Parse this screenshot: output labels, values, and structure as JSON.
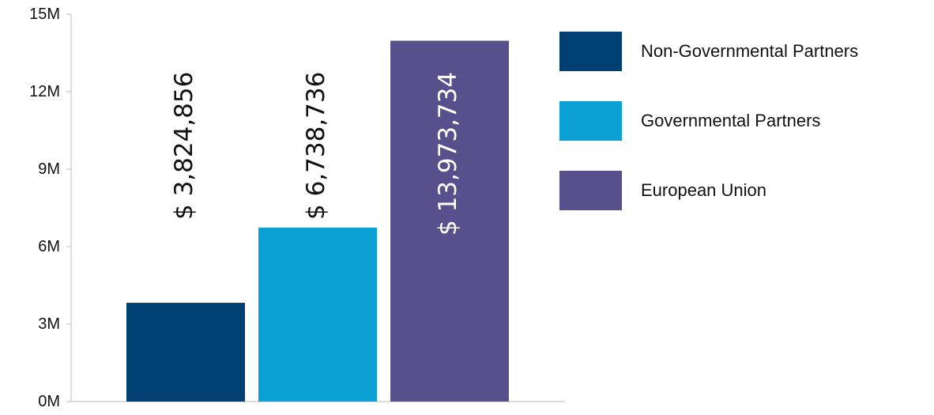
{
  "chart_data": {
    "type": "bar",
    "title": "",
    "xlabel": "",
    "ylabel": "",
    "ylim": [
      0,
      15000000
    ],
    "y_ticks": [
      0,
      3000000,
      6000000,
      9000000,
      12000000,
      15000000
    ],
    "y_tick_labels": [
      "0M",
      "3M",
      "6M",
      "9M",
      "12M",
      "15M"
    ],
    "grid": false,
    "legend_position": "right",
    "series": [
      {
        "name": "Non-Governmental Partners",
        "value": 3824856,
        "label": "$ 3,824,856",
        "color": "#003f72",
        "label_color": "#111111"
      },
      {
        "name": "Governmental Partners",
        "value": 6738736,
        "label": "$ 6,738,736",
        "color": "#0aa0d4",
        "label_color": "#111111"
      },
      {
        "name": "European Union",
        "value": 13973734,
        "label": "$ 13,973,734",
        "color": "#58508c",
        "label_color": "#ffffff"
      }
    ]
  }
}
